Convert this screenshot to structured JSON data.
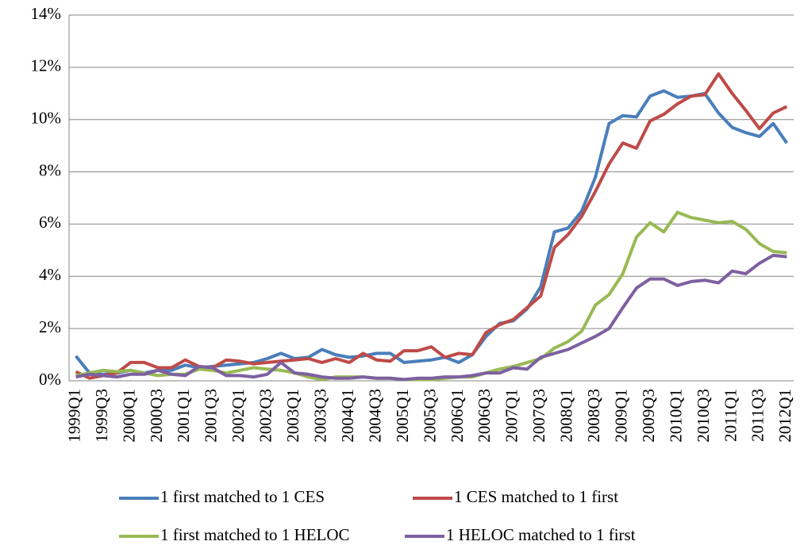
{
  "chart_data": {
    "type": "line",
    "categories": [
      "1999Q1",
      null,
      "1999Q3",
      null,
      "2000Q1",
      null,
      "2000Q3",
      null,
      "2001Q1",
      null,
      "2001Q3",
      null,
      "2002Q1",
      null,
      "2002Q3",
      null,
      "2003Q1",
      null,
      "2003Q3",
      null,
      "2004Q1",
      null,
      "2004Q3",
      null,
      "2005Q1",
      null,
      "2005Q3",
      null,
      "2006Q1",
      null,
      "2006Q3",
      null,
      "2007Q1",
      null,
      "2007Q3",
      null,
      "2008Q1",
      null,
      "2008Q3",
      null,
      "2009Q1",
      null,
      "2009Q3",
      null,
      "2010Q1",
      null,
      "2010Q3",
      null,
      "2011Q1",
      null,
      "2011Q3",
      null,
      "2012Q1"
    ],
    "series": [
      {
        "name": "1 first matched to 1 CES",
        "color": "#4a7ebb",
        "values": [
          0.95,
          0.3,
          0.25,
          0.3,
          0.4,
          0.3,
          0.4,
          0.4,
          0.6,
          0.5,
          0.55,
          0.6,
          0.65,
          0.7,
          0.85,
          1.05,
          0.85,
          0.9,
          1.2,
          1.0,
          0.9,
          0.95,
          1.05,
          1.05,
          0.7,
          0.75,
          0.8,
          0.9,
          0.7,
          1.0,
          1.7,
          2.2,
          2.3,
          2.75,
          3.6,
          5.7,
          5.85,
          6.5,
          7.8,
          9.85,
          10.15,
          10.1,
          10.9,
          11.1,
          10.85,
          10.9,
          11.0,
          10.25,
          9.7,
          9.5,
          9.35,
          9.85,
          9.1
        ]
      },
      {
        "name": "1 CES matched to 1 first",
        "color": "#be4b48",
        "values": [
          0.35,
          0.1,
          0.2,
          0.3,
          0.7,
          0.7,
          0.5,
          0.5,
          0.8,
          0.55,
          0.5,
          0.8,
          0.75,
          0.65,
          0.7,
          0.75,
          0.8,
          0.85,
          0.7,
          0.85,
          0.7,
          1.05,
          0.8,
          0.75,
          1.15,
          1.15,
          1.3,
          0.9,
          1.05,
          1.0,
          1.85,
          2.15,
          2.35,
          2.8,
          3.25,
          5.1,
          5.6,
          6.3,
          7.25,
          8.3,
          9.1,
          8.9,
          9.95,
          10.2,
          10.6,
          10.9,
          10.95,
          11.75,
          11.0,
          10.35,
          9.65,
          10.25,
          10.5
        ]
      },
      {
        "name": "1 first matched to 1 HELOC",
        "color": "#98b954",
        "values": [
          0.2,
          0.3,
          0.4,
          0.35,
          0.4,
          0.3,
          0.2,
          0.25,
          0.25,
          0.45,
          0.4,
          0.3,
          0.4,
          0.5,
          0.45,
          0.4,
          0.3,
          0.15,
          0.05,
          0.15,
          0.15,
          0.15,
          0.1,
          0.1,
          0.05,
          0.05,
          0.05,
          0.1,
          0.15,
          0.15,
          0.3,
          0.45,
          0.55,
          0.7,
          0.85,
          1.25,
          1.5,
          1.9,
          2.9,
          3.3,
          4.1,
          5.5,
          6.05,
          5.7,
          6.45,
          6.25,
          6.15,
          6.05,
          6.1,
          5.8,
          5.25,
          4.95,
          4.9
        ]
      },
      {
        "name": "1 HELOC matched to 1 first",
        "color": "#7d60a0",
        "values": [
          0.15,
          0.25,
          0.2,
          0.15,
          0.25,
          0.25,
          0.4,
          0.25,
          0.2,
          0.55,
          0.5,
          0.2,
          0.2,
          0.15,
          0.25,
          0.7,
          0.3,
          0.25,
          0.15,
          0.1,
          0.1,
          0.15,
          0.1,
          0.1,
          0.05,
          0.1,
          0.1,
          0.15,
          0.15,
          0.2,
          0.3,
          0.3,
          0.5,
          0.45,
          0.9,
          1.05,
          1.2,
          1.45,
          1.7,
          2.0,
          2.8,
          3.55,
          3.9,
          3.9,
          3.65,
          3.8,
          3.85,
          3.75,
          4.2,
          4.1,
          4.5,
          4.8,
          4.75
        ]
      }
    ],
    "ylim": [
      0,
      14
    ],
    "yticks": [
      {
        "value": 0,
        "label": "0%"
      },
      {
        "value": 2,
        "label": "2%"
      },
      {
        "value": 4,
        "label": "4%"
      },
      {
        "value": 6,
        "label": "6%"
      },
      {
        "value": 8,
        "label": "8%"
      },
      {
        "value": 10,
        "label": "10%"
      },
      {
        "value": 12,
        "label": "12%"
      },
      {
        "value": 14,
        "label": "14%"
      }
    ],
    "grid": true,
    "legend": "bottom"
  }
}
